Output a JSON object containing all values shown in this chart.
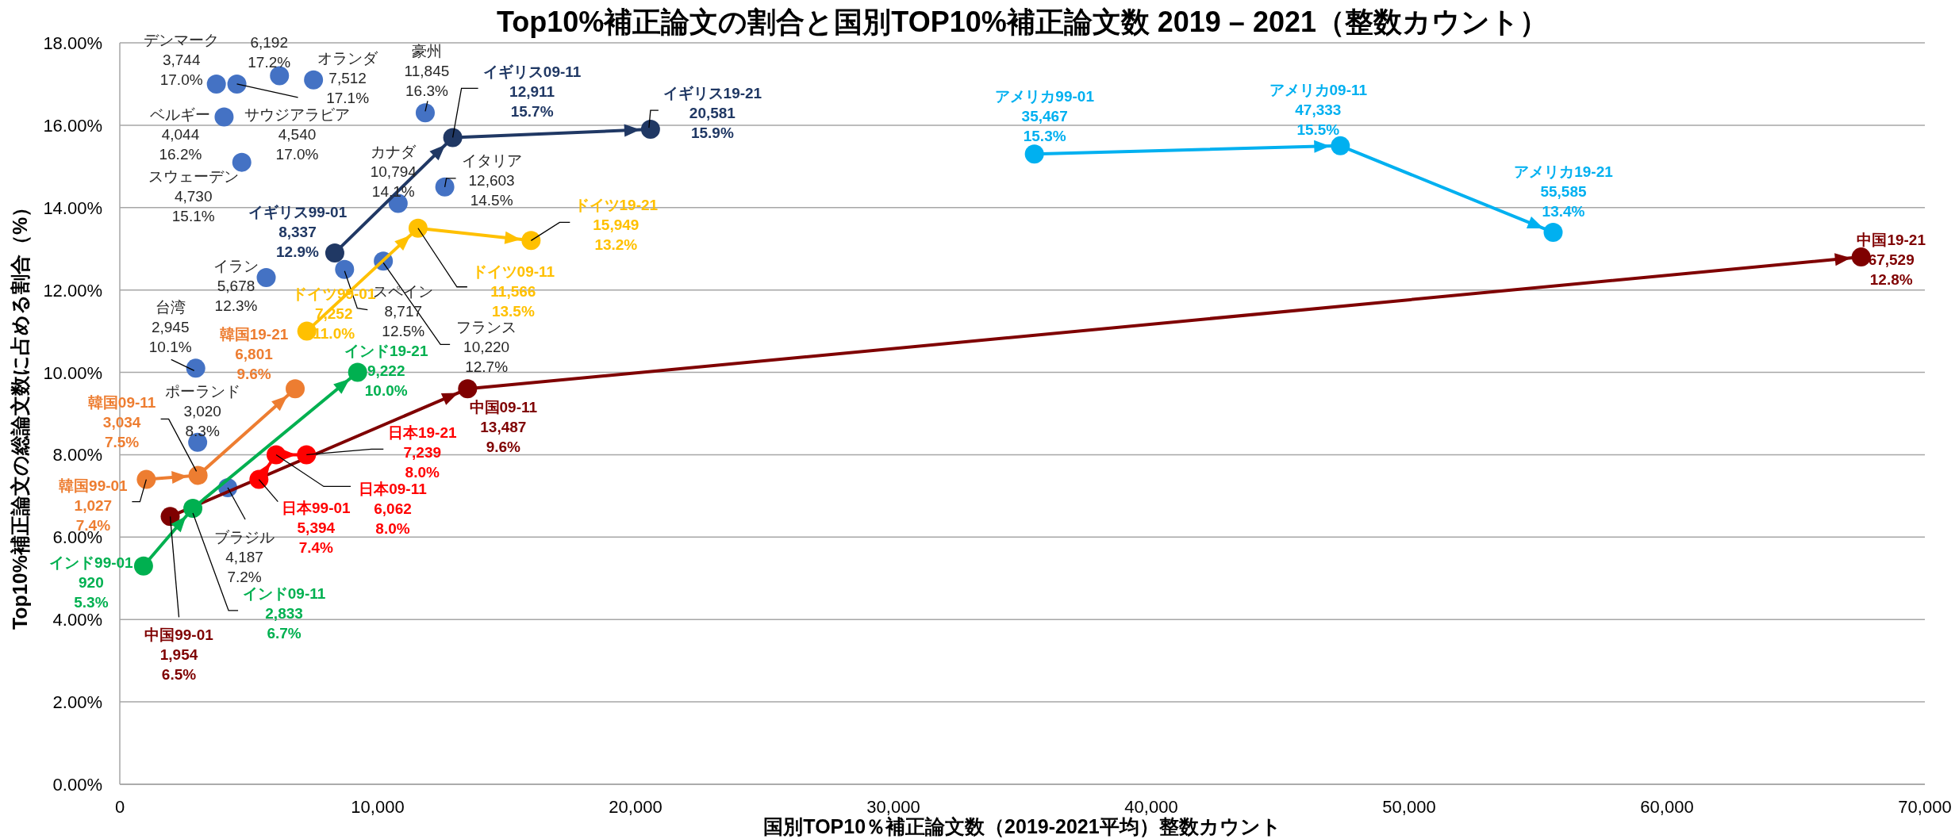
{
  "chart_data": {
    "type": "scatter",
    "title": "Top10%補正論文の割合と国別TOP10%補正論文数 2019 – 2021（整数カウント）",
    "xlabel": "国別TOP10％補正論文数（2019-2021平均）整数カウント",
    "ylabel": "Top10%補正論文の総論文数に占める割合（%）",
    "xlim": [
      0,
      70000
    ],
    "ylim": [
      0,
      18
    ],
    "xticks": [
      0,
      {
        "value": 10000,
        "label": "10,000"
      },
      {
        "value": 20000,
        "label": "20,000"
      },
      {
        "value": 30000,
        "label": "30,000"
      },
      {
        "value": 40000,
        "label": "40,000"
      },
      {
        "value": 50000,
        "label": "50,000"
      },
      {
        "value": 60000,
        "label": "60,000"
      },
      {
        "value": 70000,
        "label": "70,000"
      }
    ],
    "yticks": [
      {
        "value": 0,
        "label": "0.00%"
      },
      {
        "value": 2,
        "label": "2.00%"
      },
      {
        "value": 4,
        "label": "4.00%"
      },
      {
        "value": 6,
        "label": "6.00%"
      },
      {
        "value": 8,
        "label": "8.00%"
      },
      {
        "value": 10,
        "label": "10.00%"
      },
      {
        "value": 12,
        "label": "12.00%"
      },
      {
        "value": 14,
        "label": "14.00%"
      },
      {
        "value": 16,
        "label": "16.00%"
      },
      {
        "value": 18,
        "label": "18.00%"
      }
    ],
    "grid": "y",
    "marker": "circle",
    "series": [
      {
        "type": "scatter",
        "color": "#4472c4",
        "x": [
          3744,
          6192,
          7512,
          11845,
          4044,
          4540,
          4730,
          10794,
          12603,
          5678,
          8717,
          10220,
          2945,
          3020,
          4187
        ],
        "values": [
          17.0,
          17.2,
          17.1,
          16.3,
          16.2,
          17.0,
          15.1,
          14.1,
          14.5,
          12.3,
          12.5,
          12.7,
          10.1,
          8.3,
          7.2
        ],
        "value_labels": [
          "デンマーク\n3,744\n17.0%",
          "6,192\n17.2%",
          "オランダ\n7,512\n17.1%",
          "豪州\n11,845\n16.3%",
          "ベルギー\n4,044\n16.2%",
          "サウジアラビア\n4,540\n17.0%",
          "スウェーデン\n4,730\n15.1%",
          "カナダ\n10,794\n14.1%",
          "イタリア\n12,603\n14.5%",
          "イラン\n5,678\n12.3%",
          "スペイン\n8,717\n12.5%",
          "フランス\n10,220\n12.7%",
          "台湾\n2,945\n10.1%",
          "ポーランド\n3,020\n8.3%",
          "ブラジル\n4,187\n7.2%"
        ]
      },
      {
        "type": "line",
        "color": "#203864",
        "x": [
          8337,
          12911,
          20581
        ],
        "values": [
          12.9,
          15.7,
          15.9
        ],
        "value_labels": [
          "イギリス99-01\n8,337\n12.9%",
          "イギリス09-11\n12,911\n15.7%",
          "イギリス19-21\n20,581\n15.9%"
        ]
      },
      {
        "type": "line",
        "color": "#ffc000",
        "x": [
          7252,
          11566,
          15949
        ],
        "values": [
          11.0,
          13.5,
          13.2
        ],
        "value_labels": [
          "ドイツ99-01\n7,252\n11.0%",
          "ドイツ09-11\n11,566\n13.5%",
          "ドイツ19-21\n15,949\n13.2%"
        ]
      },
      {
        "type": "line",
        "color": "#00b0f0",
        "x": [
          35467,
          47333,
          55585
        ],
        "values": [
          15.3,
          15.5,
          13.4
        ],
        "value_labels": [
          "アメリカ99-01\n35,467\n15.3%",
          "アメリカ09-11\n47,333\n15.5%",
          "アメリカ19-21\n55,585\n13.4%"
        ]
      },
      {
        "type": "line",
        "color": "#7f0000",
        "x": [
          1954,
          13487,
          67529
        ],
        "values": [
          6.5,
          9.6,
          12.8
        ],
        "value_labels": [
          "中国99-01\n1,954\n6.5%",
          "中国09-11\n13,487\n9.6%",
          "中国19-21\n67,529\n12.8%"
        ]
      },
      {
        "type": "line",
        "color": "#ff0000",
        "x": [
          5394,
          6062,
          7239
        ],
        "values": [
          7.4,
          8.0,
          8.0
        ],
        "value_labels": [
          "日本99-01\n5,394\n7.4%",
          "日本09-11\n6,062\n8.0%",
          "日本19-21\n7,239\n8.0%"
        ]
      },
      {
        "type": "line",
        "color": "#ed7d31",
        "x": [
          1027,
          3034,
          6801
        ],
        "values": [
          7.4,
          7.5,
          9.6
        ],
        "value_labels": [
          "韓国99-01\n1,027\n7.4%",
          "韓国09-11\n3,034\n7.5%",
          "韓国19-21\n6,801\n9.6%"
        ]
      },
      {
        "type": "line",
        "color": "#00b050",
        "x": [
          920,
          2833,
          9222
        ],
        "values": [
          5.3,
          6.7,
          10.0
        ],
        "value_labels": [
          "インド99-01\n920\n5.3%",
          "インド09-11\n2,833\n6.7%",
          "インド19-21\n9,222\n10.0%"
        ]
      }
    ]
  }
}
